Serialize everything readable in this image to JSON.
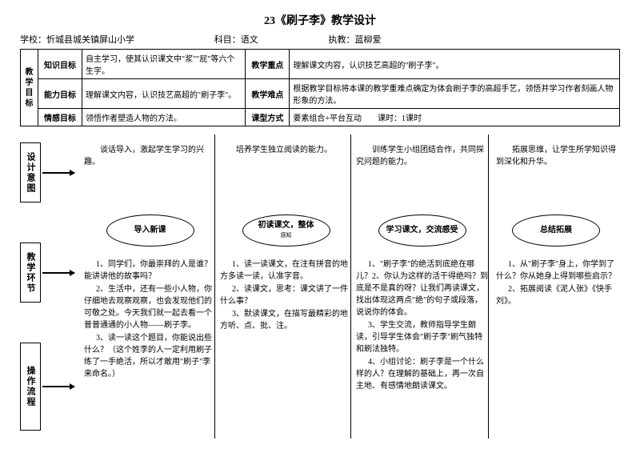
{
  "title": "23《刷子李》教学设计",
  "meta": {
    "school_label": "学校：忻城县城关镇屏山小学",
    "subject_label": "科目：语文",
    "teacher_label": "执教：蓝柳爱"
  },
  "table": {
    "goals_header": "教学目标",
    "r1": {
      "label": "知识目标",
      "content": "自主学习，使其认识课文中\"浆\"\"屁\"等六个生字。",
      "label2": "教学重点",
      "content2": "理解课文内容，认识技艺高超的\"刷子李\"。"
    },
    "r2": {
      "label": "能力目标",
      "content": "理解课文内容，认识技艺高超的\"刷子李\"。",
      "label2": "教学难点",
      "content2": "根据教学目标将本课的教学重难点确定为体会刷子李的高超手艺，领悟并学习作者刻画人物形象的方法。"
    },
    "r3": {
      "label": "情感目标",
      "content": "领悟作者塑造人物的方法。",
      "label2": "课型方式",
      "content2": "要素组合+平台互动　　课时：1课时"
    }
  },
  "sideboxes": {
    "b1": "设计意图",
    "b2": "教学环节",
    "b3": "操作流程"
  },
  "cols": {
    "c1": {
      "intent": "　　谈话导入，激起学生学习的兴趣。",
      "ellipse": "导入新课",
      "ops": [
        "1、同学们，你最崇拜的人是谁？能讲讲他的故事吗？",
        "2、生活中，还有一些小人物，你仔细地去观察观察，也会发现他们的可敬之处。今天我们就一起去看一个普普通通的小人物——刷子李。",
        "3、读一读这个题目，你能说出些什么？（这个姓李的人一定利用刷子练了一手绝活，所以才敢用\"刷子\"李来命名。）"
      ]
    },
    "c2": {
      "intent": "　　培养学生独立阅读的能力。",
      "ellipse": "初读课文，整体",
      "ellipse_sub": "感知",
      "ops": [
        "1、读一读课文，在注有拼音的地方多读一读，认准字音。",
        "2、读课文，思考：课文讲了一件什么事？",
        "3、默读课文，在描写最精彩的地方听、点、批、注。"
      ]
    },
    "c3": {
      "intent": "　　训练学生小组团结合作，共同探究问题的能力。",
      "ellipse": "学习课文，交流感受",
      "ops": [
        "1、\"刷子李\"的绝活到底绝在哪儿？2、你认为这样的活干得绝吗？到底是不是真的呀？让我们再读课文，找出体现这两点\"绝\"的句子或段落，说说你的体会。",
        "3、学生交流，教师指导学生朗读，引导学生体会\"刷子李\"刷气独特和刷法独特。",
        "4、小组讨论：刷子李是一个什么样的人？在理解的基础上，再一次自主地、有感情地朗读课文。"
      ]
    },
    "c4": {
      "intent": "　　拓展思维，让学生所学知识得到深化和升华。",
      "ellipse": "总结拓展",
      "ops": [
        "1、从\"刷子李\"身上，你学到了什么？你从她身上得到哪些启示？",
        "2、拓展阅读《泥人张》《快手刘》。"
      ]
    }
  }
}
